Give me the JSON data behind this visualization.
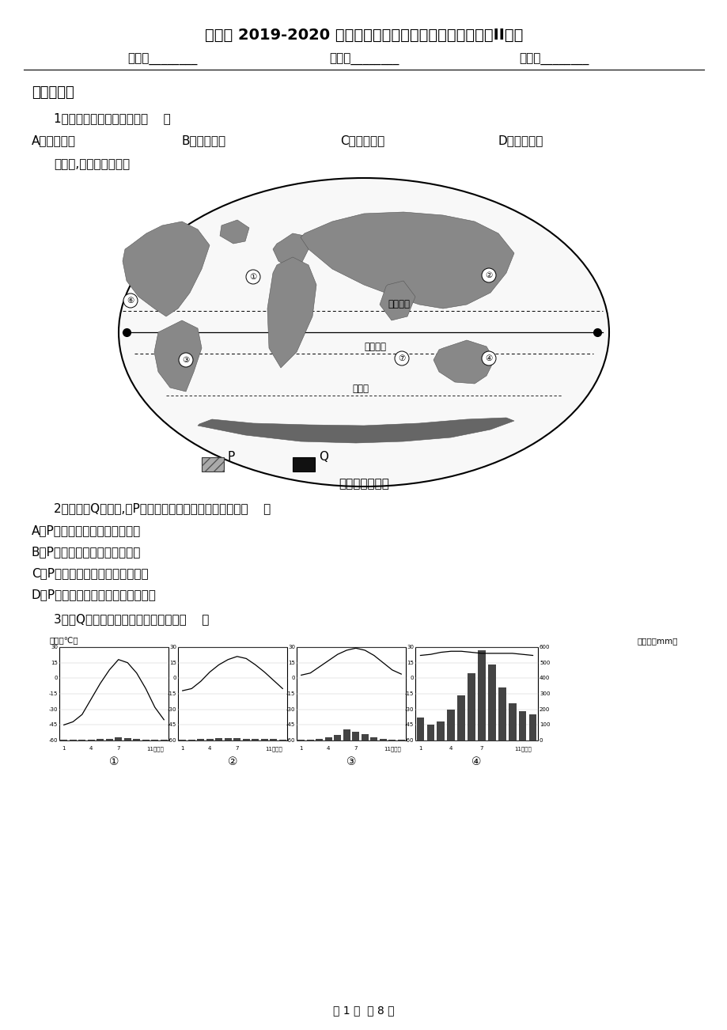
{
  "title": "人教版 2019-2020 学年七年级上学期期末考试地理试题（II）卷",
  "header_fields": [
    "姓名：________",
    "班级：________",
    "成绩：________"
  ],
  "section1_title": "一、选择题",
  "q1": "1．下列词语表示气候的是（    ）",
  "q1_options": [
    "A．暴风骤雨",
    "B．冬冷夏热",
    "C．风和日丽",
    "D．乌云密布"
  ],
  "map_intro": "读下图,回答下列小题。",
  "map_title": "世界海陆分布图",
  "q2": "2．相对于Q气候区,对P气候区气温特征的分析正确的是（    ）",
  "q2_options": [
    "A．P气候区气温低是因为纬度高",
    "B．P气候区气温低是因为海拔低",
    "C．P气候区气温高是因为降水丰富",
    "D．P气候区气温低是因为人类活动少"
  ],
  "q3": "3．与Q气候区气候类型对应正确的是（    ）",
  "chart_left_label": "气温（℃）",
  "chart_right_label": "降水量（mm）",
  "chart_y_left": [
    30,
    15,
    0,
    -15,
    -30,
    -45,
    -60
  ],
  "chart_y_right": [
    600,
    500,
    400,
    300,
    200,
    100,
    0
  ],
  "chart_numbers": [
    "①",
    "②",
    "③",
    "④"
  ],
  "footer": "第 1 页  共 8 页",
  "bg_color": "#ffffff",
  "text_color": "#000000",
  "temp1": [
    -45,
    -42,
    -35,
    -20,
    -5,
    8,
    18,
    15,
    5,
    -10,
    -28,
    -40
  ],
  "precip1": [
    4,
    3,
    4,
    6,
    8,
    10,
    18,
    16,
    9,
    7,
    5,
    4
  ],
  "temp2": [
    -12,
    -10,
    -3,
    6,
    13,
    18,
    21,
    19,
    13,
    6,
    -2,
    -10
  ],
  "precip2": [
    7,
    7,
    9,
    11,
    14,
    16,
    14,
    11,
    9,
    9,
    8,
    7
  ],
  "temp3": [
    3,
    5,
    11,
    17,
    23,
    27,
    29,
    27,
    22,
    15,
    8,
    4
  ],
  "precip3": [
    4,
    4,
    8,
    18,
    35,
    70,
    55,
    40,
    18,
    9,
    5,
    4
  ],
  "temp4": [
    22,
    23,
    25,
    26,
    26,
    25,
    24,
    24,
    24,
    24,
    23,
    22
  ],
  "precip4": [
    150,
    100,
    120,
    200,
    290,
    430,
    580,
    490,
    340,
    240,
    190,
    170
  ]
}
